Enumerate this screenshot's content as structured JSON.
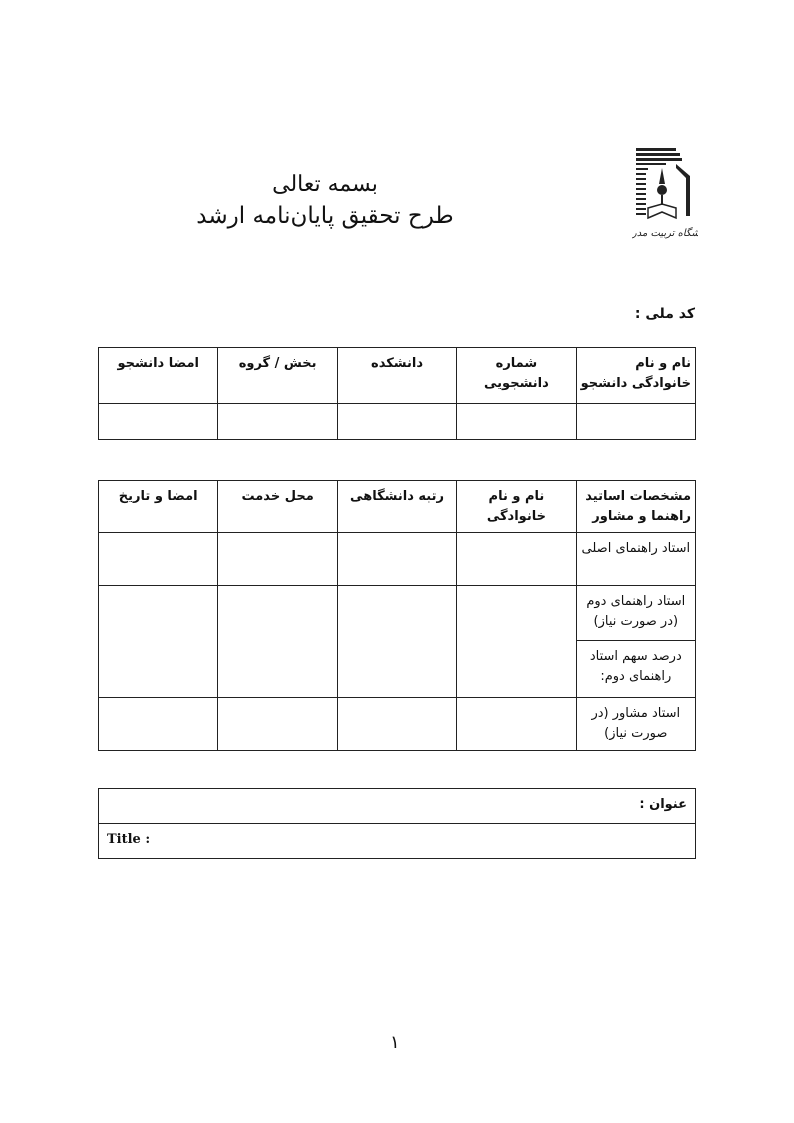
{
  "header": {
    "line1": "بسمه تعالی",
    "line2": "طرح تحقیق پایان‌نامه ارشد",
    "logo_text": "دانشگاه تربیت مدرس"
  },
  "national_id_label": "کد ملی :",
  "student_table": {
    "headers": [
      "نام و نام خانوادگی دانشجو",
      "شماره دانشجویی",
      "دانشکده",
      "بخش / گروه",
      "امضا دانشجو"
    ]
  },
  "supervisor_table": {
    "headers": [
      "مشخصات اساتید راهنما و مشاور",
      "نام و نام خانوادگی",
      "رتبه دانشگاهی",
      "محل خدمت",
      "امضا و تاریخ"
    ],
    "rows": [
      "استاد راهنمای اصلی",
      "استاد راهنمای دوم (در صورت نیاز)",
      "درصد سهم استاد راهنمای دوم:",
      "استاد مشاور (در صورت نیاز)"
    ]
  },
  "title_box": {
    "fa_label": "عنوان :",
    "en_label": "Title :"
  },
  "page_number": "۱"
}
